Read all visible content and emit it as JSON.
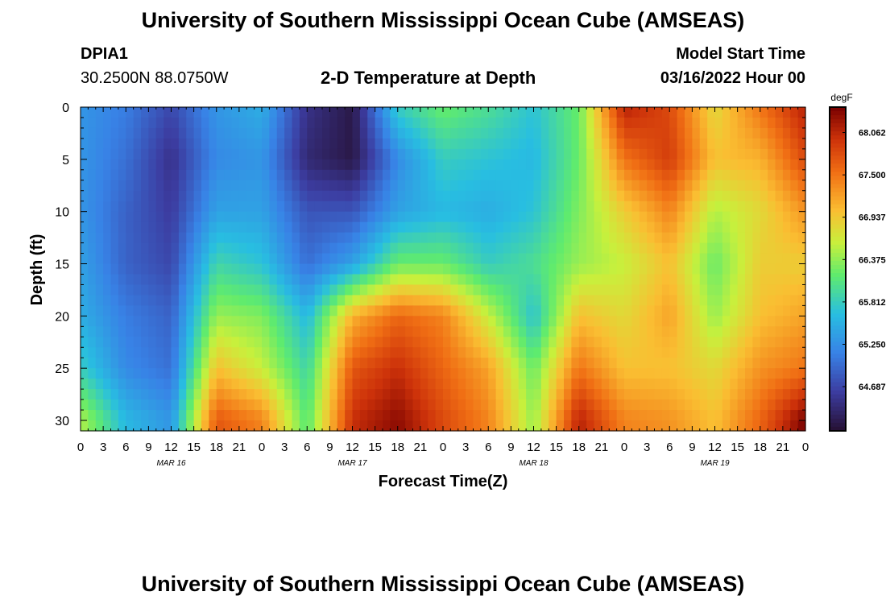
{
  "page": {
    "title": "University of Southern Mississippi Ocean Cube (AMSEAS)",
    "footer_title": "University of Southern Mississippi Ocean Cube (AMSEAS)",
    "station_id": "DPIA1",
    "station_coords": "30.2500N  88.0750W",
    "model_start_label": "Model Start Time",
    "model_start_value": "03/16/2022 Hour 00"
  },
  "chart_data": {
    "type": "heatmap",
    "title": "2-D Temperature at Depth",
    "xlabel": "Forecast Time(Z)",
    "ylabel": "Depth (ft)",
    "x_hours_range": [
      0,
      96
    ],
    "ylim": [
      0,
      31
    ],
    "y_inverted": true,
    "x_tick_labels": [
      "0",
      "3",
      "6",
      "9",
      "12",
      "15",
      "18",
      "21",
      "0",
      "3",
      "6",
      "9",
      "12",
      "15",
      "18",
      "21",
      "0",
      "3",
      "6",
      "9",
      "12",
      "15",
      "18",
      "21",
      "0",
      "3",
      "6",
      "9",
      "12",
      "15",
      "18",
      "21",
      "0"
    ],
    "y_ticks": [
      0,
      5,
      10,
      15,
      20,
      25,
      30
    ],
    "day_labels": [
      {
        "label": "MAR 16",
        "hour": 12
      },
      {
        "label": "MAR 17",
        "hour": 36
      },
      {
        "label": "MAR 18",
        "hour": 60
      },
      {
        "label": "MAR 19",
        "hour": 84
      }
    ],
    "colorbar": {
      "unit": "degF",
      "min": 64.1,
      "max": 68.4,
      "tick_values": [
        68.0625,
        67.5,
        66.9375,
        66.375,
        65.8125,
        65.25,
        64.6875
      ],
      "tick_labels": [
        "68.0625",
        "67.5000",
        "66.9375",
        "66.3750",
        "65.8125",
        "65.2500",
        "64.6875"
      ]
    },
    "hours": [
      0,
      6,
      12,
      18,
      24,
      30,
      36,
      42,
      48,
      54,
      60,
      66,
      72,
      78,
      84,
      90,
      96
    ],
    "depths_ft": [
      0,
      5,
      10,
      15,
      20,
      25,
      30
    ],
    "temperature_degF": [
      [
        65.3,
        65.1,
        64.7,
        65.3,
        65.5,
        64.5,
        64.2,
        65.8,
        66.2,
        66.0,
        65.7,
        66.2,
        68.1,
        67.8,
        66.8,
        67.5,
        68.1
      ],
      [
        65.3,
        65.0,
        64.5,
        65.2,
        65.3,
        64.4,
        64.2,
        65.2,
        65.8,
        65.7,
        65.6,
        66.2,
        67.5,
        67.9,
        67.0,
        67.1,
        67.8
      ],
      [
        65.3,
        64.9,
        64.6,
        65.4,
        65.4,
        64.8,
        64.8,
        65.4,
        65.6,
        65.5,
        65.7,
        66.3,
        66.9,
        67.4,
        66.5,
        66.8,
        67.3
      ],
      [
        65.4,
        64.9,
        64.7,
        65.9,
        65.7,
        65.0,
        65.4,
        66.2,
        66.2,
        65.8,
        66.0,
        66.4,
        66.6,
        67.0,
        66.2,
        66.9,
        66.9
      ],
      [
        65.5,
        65.1,
        64.9,
        66.4,
        66.3,
        65.6,
        67.1,
        67.6,
        67.4,
        66.6,
        65.7,
        67.0,
        66.8,
        67.2,
        66.4,
        67.0,
        67.2
      ],
      [
        65.8,
        65.2,
        65.0,
        67.0,
        66.6,
        65.9,
        67.7,
        68.0,
        67.6,
        67.2,
        66.2,
        67.5,
        67.0,
        67.0,
        66.8,
        67.3,
        67.5
      ],
      [
        66.5,
        65.6,
        65.3,
        67.7,
        67.4,
        66.1,
        68.0,
        68.3,
        67.8,
        67.4,
        66.4,
        68.1,
        67.4,
        67.3,
        67.0,
        67.6,
        68.4
      ]
    ]
  }
}
